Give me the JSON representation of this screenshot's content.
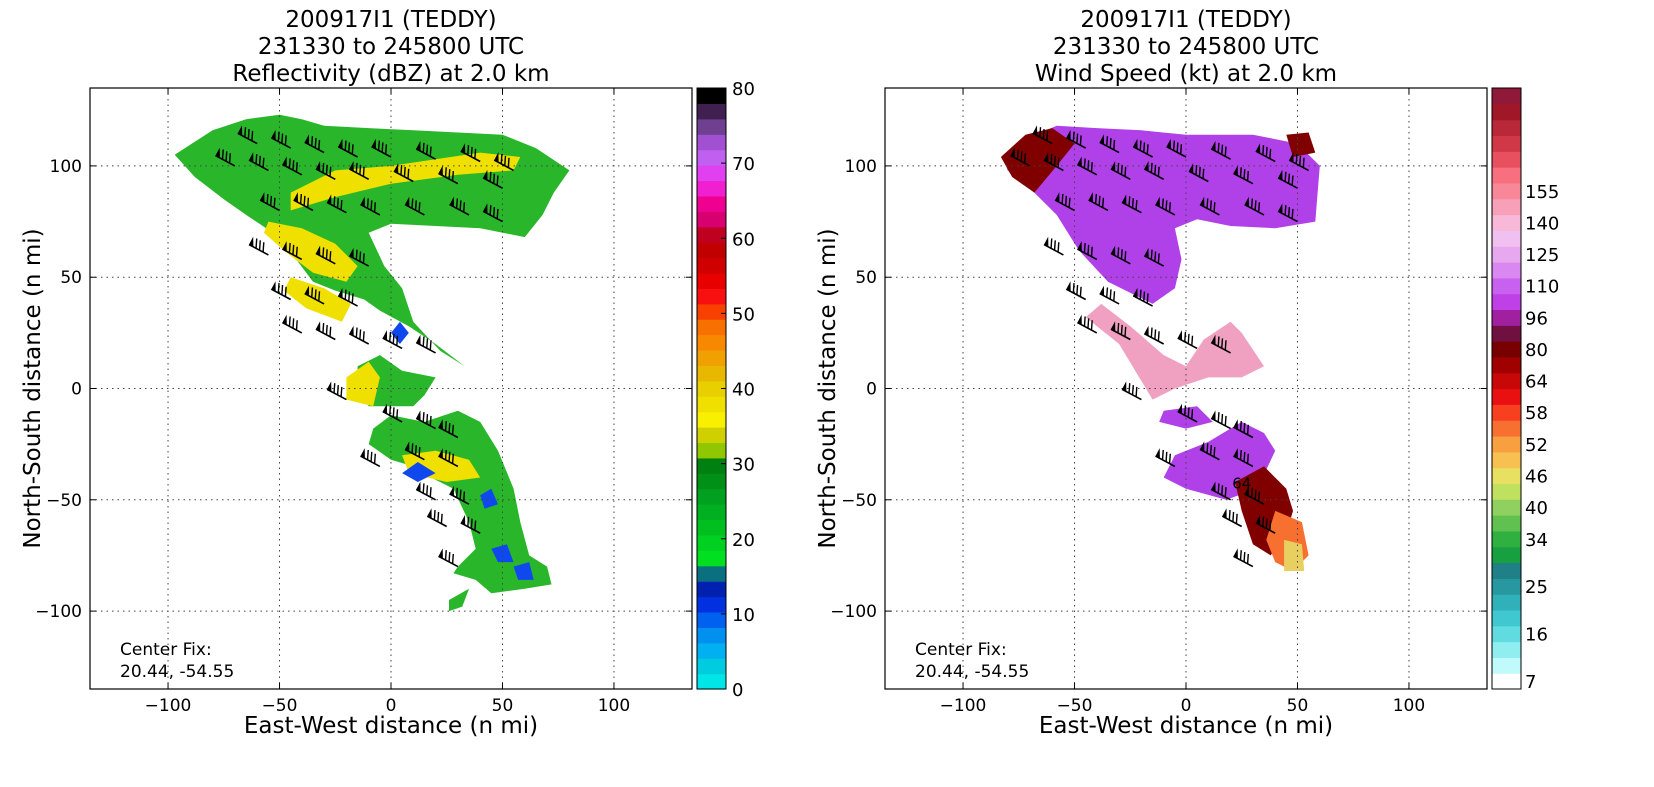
{
  "chart_data": [
    {
      "type": "heatmap",
      "title": [
        "200917I1 (TEDDY)",
        "231330 to 245800 UTC",
        "Reflectivity (dBZ) at 2.0 km"
      ],
      "xlabel": "East-West distance (n mi)",
      "ylabel": "North-South distance (n mi)",
      "xlim": [
        -135,
        135
      ],
      "ylim": [
        -135,
        135
      ],
      "xticks": [
        -100,
        -50,
        0,
        50,
        100
      ],
      "xtick_labels": [
        "−100",
        "−50",
        "0",
        "50",
        "100"
      ],
      "yticks": [
        -100,
        -50,
        0,
        50,
        100
      ],
      "ytick_labels": [
        "−100",
        "−50",
        "0",
        "50",
        "100"
      ],
      "grid": true,
      "annotation": [
        "Center Fix:",
        "20.44, -54.55"
      ],
      "colorbar": {
        "min": 0,
        "max": 80,
        "tick_values": [
          0,
          10,
          20,
          30,
          40,
          50,
          60,
          70,
          80
        ],
        "tick_labels": [
          "0",
          "10",
          "20",
          "30",
          "40",
          "50",
          "60",
          "70",
          "80"
        ],
        "colors": [
          "#00e5e5",
          "#00cce0",
          "#00b0f0",
          "#0090f0",
          "#0060f0",
          "#0030e0",
          "#0020b0",
          "#0a7080",
          "#00e020",
          "#00d020",
          "#00c020",
          "#00b020",
          "#00a020",
          "#009018",
          "#008010",
          "#90c800",
          "#d0d000",
          "#f8f000",
          "#f0e000",
          "#e8d000",
          "#e8b800",
          "#f0a000",
          "#f88800",
          "#f87000",
          "#f84000",
          "#f81010",
          "#e80000",
          "#d00000",
          "#c00000",
          "#c00020",
          "#d80070",
          "#f00090",
          "#f020d0",
          "#e040f0",
          "#c060f0",
          "#a050d0",
          "#704090",
          "#402050",
          "#000000"
        ]
      },
      "description_colors": {
        "dominant": "#2ab62a",
        "bands": "#f0e000",
        "weak": "#1048f0"
      }
    },
    {
      "type": "heatmap",
      "title": [
        "200917I1 (TEDDY)",
        "231330 to 245800 UTC",
        "Wind Speed (kt) at 2.0 km"
      ],
      "xlabel": "East-West distance (n mi)",
      "ylabel": "North-South distance (n mi)",
      "xlim": [
        -135,
        135
      ],
      "ylim": [
        -135,
        135
      ],
      "xticks": [
        -100,
        -50,
        0,
        50,
        100
      ],
      "xtick_labels": [
        "−100",
        "−50",
        "0",
        "50",
        "100"
      ],
      "yticks": [
        -100,
        -50,
        0,
        50,
        100
      ],
      "ytick_labels": [
        "−100",
        "−50",
        "0",
        "50",
        "100"
      ],
      "grid": true,
      "annotation": [
        "Center Fix:",
        "20.44, -54.55"
      ],
      "contour_label": "64",
      "colorbar": {
        "tick_labels": [
          "7",
          "16",
          "25",
          "34",
          "40",
          "46",
          "52",
          "58",
          "64",
          "80",
          "96",
          "110",
          "125",
          "140",
          "155"
        ],
        "tick_bins": [
          0,
          3,
          6,
          9,
          11,
          13,
          15,
          17,
          19,
          21,
          23,
          25,
          27,
          29,
          31
        ],
        "colors": [
          "#ffffff",
          "#c0fafa",
          "#90eef0",
          "#60dce0",
          "#40c8d0",
          "#30b0b8",
          "#2898a0",
          "#208088",
          "#18a040",
          "#30b040",
          "#60c050",
          "#90d060",
          "#c0e060",
          "#e8e060",
          "#f8c050",
          "#f8a040",
          "#f87030",
          "#f84020",
          "#e81010",
          "#c80808",
          "#a00000",
          "#780000",
          "#701040",
          "#a020a0",
          "#c040e8",
          "#c860f0",
          "#d888f0",
          "#e8a8f0",
          "#f0c0f0",
          "#f8b8d8",
          "#f8a0b8",
          "#f88898",
          "#f87080",
          "#e85060",
          "#d03848",
          "#b82838",
          "#a01828",
          "#901838"
        ]
      },
      "description_colors": {
        "dominant": "#b040e8",
        "strong": "#800000",
        "light": "#f0a0c0"
      }
    }
  ]
}
